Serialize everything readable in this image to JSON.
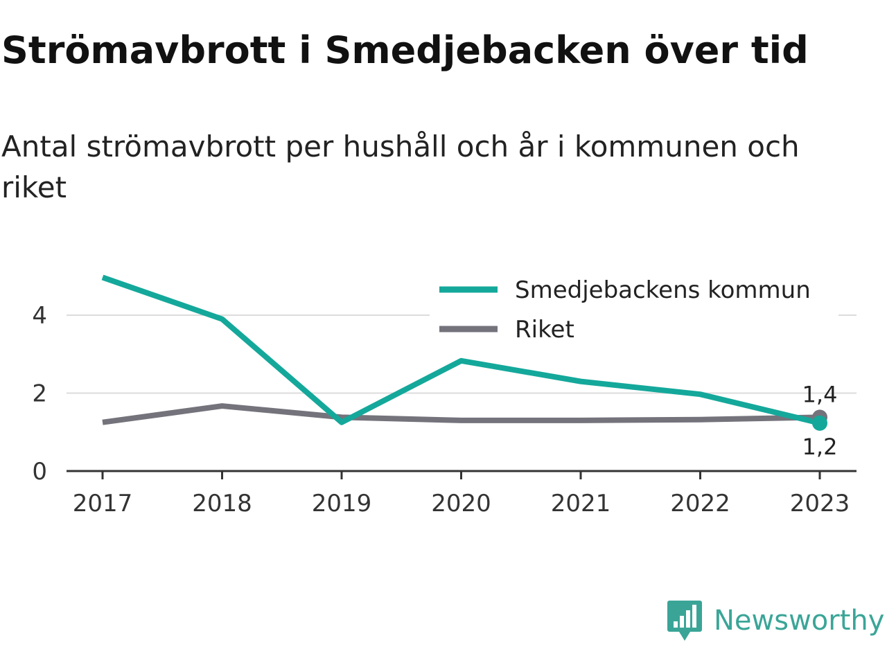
{
  "chart_data": {
    "type": "line",
    "title": "Strömavbrott i Smedjebacken över tid",
    "subtitle": "Antal strömavbrott per hushåll och år i kommunen och riket",
    "categories": [
      "2017",
      "2018",
      "2019",
      "2020",
      "2021",
      "2022",
      "2023"
    ],
    "series": [
      {
        "name": "Smedjebackens kommun",
        "color": "#14a89b",
        "values": [
          4.97,
          3.9,
          1.25,
          2.83,
          2.3,
          1.97,
          1.23
        ],
        "end_label": "1,2"
      },
      {
        "name": "Riket",
        "color": "#74737c",
        "values": [
          1.25,
          1.67,
          1.38,
          1.3,
          1.3,
          1.32,
          1.38
        ],
        "end_label": "1,4"
      }
    ],
    "y_ticks": [
      "0",
      "2",
      "4"
    ],
    "ylim": [
      0,
      5
    ],
    "grid": true,
    "legend_position": "top-right"
  },
  "brand": {
    "name": "Newsworthy",
    "color": "#3aa597",
    "icon": "newsworthy-logo-icon"
  }
}
